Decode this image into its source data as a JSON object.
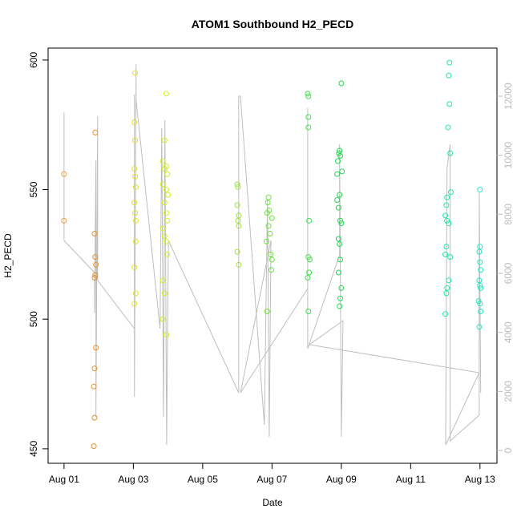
{
  "chart_data": {
    "type": "scatter",
    "title": "ATOM1 Southbound H2_PECD",
    "xlabel": "Date",
    "ylabel": "H2_PECD",
    "xlim": [
      0.54,
      13.49
    ],
    "ylim": [
      444.4,
      604.6
    ],
    "y2lim": [
      -434,
      13629
    ],
    "xticks": [
      {
        "value": 1,
        "label": "Aug 01"
      },
      {
        "value": 3,
        "label": "Aug 03"
      },
      {
        "value": 5,
        "label": "Aug 05"
      },
      {
        "value": 7,
        "label": "Aug 07"
      },
      {
        "value": 9,
        "label": "Aug 09"
      },
      {
        "value": 11,
        "label": "Aug 11"
      },
      {
        "value": 13,
        "label": "Aug 13"
      }
    ],
    "yticks": [
      450,
      500,
      550,
      600
    ],
    "y2ticks": [
      0,
      2000,
      4000,
      6000,
      8000,
      10000,
      12000
    ],
    "series": [
      {
        "axis": "y2",
        "color": "#bebebe",
        "x": [
          1.0,
          1.0,
          1.88,
          1.88,
          1.92,
          1.92,
          1.97,
          1.97,
          3.03,
          3.03,
          3.03,
          3.08,
          3.08,
          3.77,
          3.82,
          3.87,
          3.91,
          3.96,
          4.01,
          6.04,
          6.04,
          6.09,
          6.78,
          6.87,
          6.92,
          6.97,
          6.09,
          8.03,
          8.03,
          8.03,
          8.95,
          8.95,
          9.0,
          9.05,
          8.08,
          12.98,
          12.01,
          12.05,
          12.14,
          12.14,
          12.98,
          12.98,
          13.02
        ],
        "values": [
          11458,
          7114,
          6028,
          4670,
          9829,
          1140,
          11322,
          5756,
          4127,
          12055,
          1819,
          13087,
          11865,
          4127,
          10915,
          1140,
          11186,
          190,
          7114,
          1955,
          12001,
          12001,
          869,
          8471,
          462,
          7114,
          1955,
          5485,
          11594,
          3448,
          6625,
          10372,
          462,
          4399,
          3584,
          2634,
          190,
          9558,
          10372,
          326,
          1195,
          8743,
          1955
        ]
      },
      {
        "color": "#f0a040",
        "x": [
          1.0,
          1.0
        ],
        "values": [
          556,
          538
        ]
      },
      {
        "color": "#e89030",
        "x": [
          1.9,
          1.88,
          1.9,
          1.92,
          1.9,
          1.88,
          1.92,
          1.88,
          1.86,
          1.88,
          1.86
        ],
        "values": [
          572,
          533,
          524,
          521,
          517,
          516,
          489,
          481,
          474,
          462,
          451
        ]
      },
      {
        "color": "#e0e030",
        "x": [
          3.05,
          3.03,
          3.05,
          3.03,
          3.05,
          3.07,
          3.03,
          3.05,
          3.07,
          3.07,
          3.03,
          3.07,
          3.03
        ],
        "values": [
          595,
          576,
          569,
          558,
          555,
          551,
          545,
          541,
          538,
          530,
          520,
          510,
          506
        ]
      },
      {
        "color": "#d0f020",
        "x": [
          3.95,
          3.9,
          3.85,
          3.95,
          3.9,
          3.98,
          3.85,
          3.95,
          4.0,
          3.9,
          3.95,
          3.98,
          3.85,
          3.9,
          3.95,
          3.98,
          3.85,
          3.9,
          3.85,
          3.95
        ],
        "values": [
          587,
          569,
          561,
          559,
          558,
          556,
          552,
          550,
          548,
          545,
          541,
          538,
          535,
          532,
          530,
          525,
          515,
          510,
          500,
          494
        ]
      },
      {
        "color": "#a0e040",
        "x": [
          6.0,
          6.02,
          6.0,
          6.04,
          6.02,
          6.04,
          6.0,
          6.04
        ],
        "values": [
          552,
          551,
          544,
          540,
          538,
          536,
          526,
          521
        ]
      },
      {
        "color": "#70e040",
        "x": [
          6.9,
          6.88,
          6.92,
          6.86,
          7.0,
          6.9,
          6.94,
          6.84,
          6.96,
          7.0,
          6.98,
          6.86
        ],
        "values": [
          547,
          545,
          542,
          541,
          539,
          536,
          533,
          530,
          525,
          523,
          519,
          503
        ]
      },
      {
        "color": "#40e050",
        "x": [
          8.03,
          8.05,
          8.05,
          8.05,
          8.07,
          8.05,
          8.09,
          8.07,
          8.03,
          8.05
        ],
        "values": [
          587,
          586,
          578,
          574,
          538,
          524,
          523,
          518,
          516,
          503
        ]
      },
      {
        "color": "#20d850",
        "x": [
          9.0,
          8.95,
          8.93,
          8.97,
          8.9,
          9.02,
          8.88,
          8.95,
          8.88,
          8.92,
          8.97,
          9.0,
          8.92,
          8.95,
          8.97,
          8.92,
          9.0,
          8.97,
          8.95
        ],
        "values": [
          591,
          565,
          564,
          563,
          561,
          557,
          556,
          548,
          546,
          543,
          538,
          537,
          531,
          529,
          523,
          518,
          512,
          508,
          505
        ]
      },
      {
        "color": "#20e8a0",
        "x": [
          12.12,
          12.1,
          12.12,
          12.08,
          12.14,
          12.16,
          12.05,
          12.03,
          12.0,
          12.05,
          12.1,
          12.03,
          12.0,
          12.14,
          12.1,
          12.05,
          12.03,
          12.0
        ],
        "values": [
          599,
          594,
          583,
          574,
          564,
          549,
          547,
          544,
          540,
          538,
          537,
          528,
          525,
          524,
          515,
          512,
          510,
          502
        ]
      },
      {
        "color": "#20e8c0",
        "x": [
          13.0,
          13.0,
          12.98,
          13.0,
          13.02,
          12.98,
          13.0,
          13.02,
          12.96,
          13.0,
          13.02,
          12.98
        ],
        "values": [
          550,
          528,
          526,
          522,
          519,
          515,
          513,
          512,
          507,
          506,
          503,
          497
        ]
      }
    ]
  }
}
